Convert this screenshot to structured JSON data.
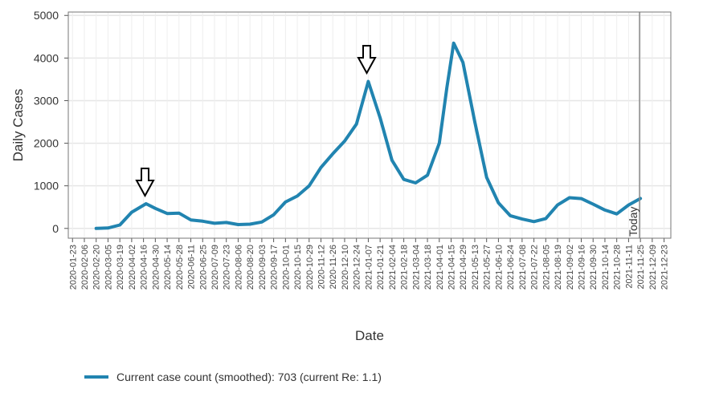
{
  "chart_data": {
    "type": "line",
    "ylabel": "Daily Cases",
    "xlabel": "Date",
    "x": [
      "2020-02-20",
      "2020-03-05",
      "2020-03-19",
      "2020-04-02",
      "2020-04-19",
      "2020-04-30",
      "2020-05-14",
      "2020-05-28",
      "2020-06-11",
      "2020-06-25",
      "2020-07-09",
      "2020-07-23",
      "2020-08-06",
      "2020-08-20",
      "2020-09-03",
      "2020-09-17",
      "2020-10-01",
      "2020-10-15",
      "2020-10-29",
      "2020-11-12",
      "2020-11-26",
      "2020-12-10",
      "2020-12-24",
      "2021-01-07",
      "2021-01-21",
      "2021-02-04",
      "2021-02-18",
      "2021-03-04",
      "2021-03-18",
      "2021-04-01",
      "2021-04-10",
      "2021-04-18",
      "2021-04-29",
      "2021-05-13",
      "2021-05-27",
      "2021-06-10",
      "2021-06-24",
      "2021-07-08",
      "2021-07-22",
      "2021-08-05",
      "2021-08-19",
      "2021-09-02",
      "2021-09-16",
      "2021-09-30",
      "2021-10-14",
      "2021-10-28",
      "2021-11-11",
      "2021-11-25"
    ],
    "series": [
      {
        "name": "Current case count (smoothed): 703  (current Re: 1.1)",
        "color": "#2184b0",
        "values": [
          0,
          10,
          80,
          380,
          580,
          470,
          350,
          360,
          200,
          170,
          120,
          140,
          90,
          100,
          150,
          320,
          620,
          760,
          1000,
          1430,
          1750,
          2050,
          2450,
          3450,
          2600,
          1600,
          1150,
          1070,
          1250,
          2000,
          3300,
          4350,
          3900,
          2500,
          1200,
          600,
          300,
          220,
          160,
          230,
          550,
          720,
          700,
          570,
          430,
          340,
          550,
          703
        ]
      }
    ],
    "xlim": [
      "2020-01-18",
      "2021-12-31"
    ],
    "xticks": [
      "2020-01-23",
      "2020-02-06",
      "2020-02-20",
      "2020-03-05",
      "2020-03-19",
      "2020-04-02",
      "2020-04-16",
      "2020-04-30",
      "2020-05-14",
      "2020-05-28",
      "2020-06-11",
      "2020-06-25",
      "2020-07-09",
      "2020-07-23",
      "2020-08-06",
      "2020-08-20",
      "2020-09-03",
      "2020-09-17",
      "2020-10-01",
      "2020-10-15",
      "2020-10-29",
      "2020-11-12",
      "2020-11-26",
      "2020-12-10",
      "2020-12-24",
      "2021-01-07",
      "2021-01-21",
      "2021-02-04",
      "2021-02-18",
      "2021-03-04",
      "2021-03-18",
      "2021-04-01",
      "2021-04-15",
      "2021-04-29",
      "2021-05-13",
      "2021-05-27",
      "2021-06-10",
      "2021-06-24",
      "2021-07-08",
      "2021-07-22",
      "2021-08-05",
      "2021-08-19",
      "2021-09-02",
      "2021-09-16",
      "2021-09-30",
      "2021-10-14",
      "2021-10-28",
      "2021-11-11",
      "2021-11-25",
      "2021-12-09",
      "2021-12-23"
    ],
    "ylim": [
      -230,
      5080
    ],
    "yticks": [
      0,
      1000,
      2000,
      3000,
      4000,
      5000
    ],
    "grid": true,
    "annotations": [
      {
        "text": "Today",
        "x": "2021-11-24"
      }
    ]
  }
}
